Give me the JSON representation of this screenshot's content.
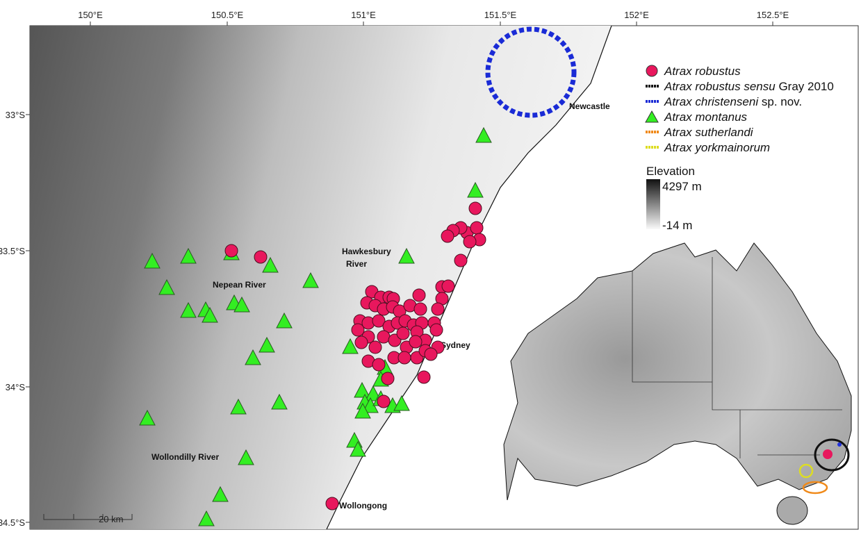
{
  "axes": {
    "longitude": [
      "150°E",
      "150.5°E",
      "151°E",
      "151.5°E",
      "152°E",
      "152.5°E"
    ],
    "latitude": [
      "33°S",
      "33.5°S",
      "34°S",
      "34.5°S"
    ]
  },
  "places": {
    "newcastle": "Newcastle",
    "hawkesbury": [
      "Hawkesbury",
      "River"
    ],
    "nepean": "Nepean River",
    "sydney": "Sydney",
    "wollondilly": "Wollondilly River",
    "wollongong": "Wollongong"
  },
  "legend": [
    [
      "Atrax robustus"
    ],
    [
      "Atrax robustus",
      "sensu",
      "Gray 2010"
    ],
    [
      "Atrax christenseni",
      "sp. nov."
    ],
    [
      "Atrax montanus"
    ],
    [
      "Atrax sutherlandi"
    ],
    [
      "Atrax yorkmainorum"
    ]
  ],
  "elevation": {
    "title": "Elevation",
    "max": "4297 m",
    "min": "-14 m"
  },
  "scale_bar": "20 km"
}
